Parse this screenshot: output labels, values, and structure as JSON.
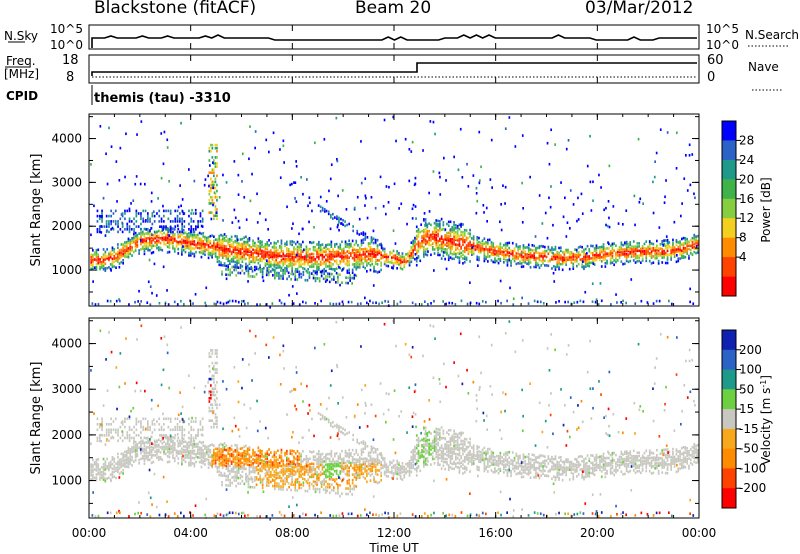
{
  "header": {
    "station": "Blackstone (fitACF)",
    "beam": "Beam 20",
    "date": "03/Mar/2012"
  },
  "side_labels": {
    "nsky": "N.Sky",
    "nsky_tick_hi": "10^5",
    "nsky_tick_lo": "10^0",
    "nsearch": "N.Search",
    "nsearch_tick_hi": "10^5",
    "nsearch_tick_lo": "10^0",
    "freq": "Freq.",
    "freq_unit": "[MHz]",
    "freq_tick_hi": "18",
    "freq_tick_lo": "8",
    "nave": "Nave",
    "nave_tick_hi": "60",
    "nave_tick_lo": "0",
    "cpid": "CPID",
    "cpid_value": "themis (tau) -3310"
  },
  "chart_data": [
    {
      "type": "heatmap",
      "title": "",
      "xlabel": "Time UT",
      "ylabel": "Slant Range [km]",
      "xlim": [
        0,
        24
      ],
      "ylim": [
        180,
        4560
      ],
      "x_ticks": [
        "00:00",
        "04:00",
        "08:00",
        "12:00",
        "16:00",
        "20:00",
        "00:00"
      ],
      "y_ticks": [
        1000,
        2000,
        3000,
        4000
      ],
      "colorbar": {
        "label": "Power [dB]",
        "ticks": [
          4,
          8,
          12,
          16,
          20,
          24,
          28
        ],
        "colors": [
          "#0000ff",
          "#2a62c6",
          "#1f9a8a",
          "#3fb34a",
          "#86cd3f",
          "#f3cf1f",
          "#ff8b00",
          "#ff4200",
          "#ff0000"
        ]
      },
      "band_center": [
        [
          0.0,
          1250
        ],
        [
          0.5,
          1250
        ],
        [
          1.0,
          1330
        ],
        [
          2.0,
          1700
        ],
        [
          3.0,
          1750
        ],
        [
          4.0,
          1650
        ],
        [
          5.0,
          1550
        ],
        [
          6.0,
          1450
        ],
        [
          7.0,
          1380
        ],
        [
          8.0,
          1330
        ],
        [
          9.0,
          1320
        ],
        [
          10.0,
          1340
        ],
        [
          11.0,
          1400
        ],
        [
          12.0,
          1300
        ],
        [
          12.4,
          1200
        ],
        [
          13.0,
          1700
        ],
        [
          13.5,
          1800
        ],
        [
          14.5,
          1650
        ],
        [
          15.5,
          1500
        ],
        [
          16.5,
          1400
        ],
        [
          17.5,
          1350
        ],
        [
          18.5,
          1300
        ],
        [
          19.5,
          1320
        ],
        [
          20.5,
          1400
        ],
        [
          21.5,
          1450
        ],
        [
          22.5,
          1450
        ],
        [
          23.3,
          1500
        ],
        [
          24.0,
          1650
        ]
      ]
    },
    {
      "type": "heatmap",
      "title": "",
      "xlabel": "Time UT",
      "ylabel": "Slant Range [km]",
      "xlim": [
        0,
        24
      ],
      "ylim": [
        180,
        4560
      ],
      "x_ticks": [
        "00:00",
        "04:00",
        "08:00",
        "12:00",
        "16:00",
        "20:00",
        "00:00"
      ],
      "y_ticks": [
        1000,
        2000,
        3000,
        4000
      ],
      "colorbar": {
        "label_main": "Velocity [m s",
        "label_exp": "-1",
        "label_close": "]",
        "ticks": [
          "200",
          "100",
          "50",
          "15",
          "-15",
          "-50",
          "-100",
          "-200"
        ],
        "colors": [
          "#1020b0",
          "#2a62c6",
          "#1f9a8a",
          "#6dd040",
          "#c8c8c0",
          "#f7a81d",
          "#ff8b00",
          "#ff4200",
          "#ff0000"
        ]
      }
    }
  ],
  "nsky_series": [
    3,
    3,
    3,
    4,
    3,
    3,
    3,
    3,
    4,
    3,
    3,
    3,
    4,
    3,
    3,
    3,
    3,
    3,
    4,
    3,
    3,
    3,
    3,
    3,
    3,
    3,
    3,
    3,
    3,
    2,
    2,
    2,
    2,
    2,
    2,
    2,
    2,
    2,
    2,
    2,
    2,
    2,
    2,
    2,
    2,
    2,
    2,
    2,
    2,
    2,
    2,
    2,
    2,
    2,
    2,
    2,
    3,
    3,
    3,
    3,
    3,
    3,
    3,
    3,
    3,
    3,
    3,
    3,
    3,
    3,
    3,
    3,
    3,
    3,
    3,
    3,
    3,
    3,
    3,
    3,
    2,
    2,
    2,
    2,
    2,
    2,
    2,
    2,
    2,
    2,
    3,
    3,
    3,
    3,
    3,
    3,
    3
  ]
}
